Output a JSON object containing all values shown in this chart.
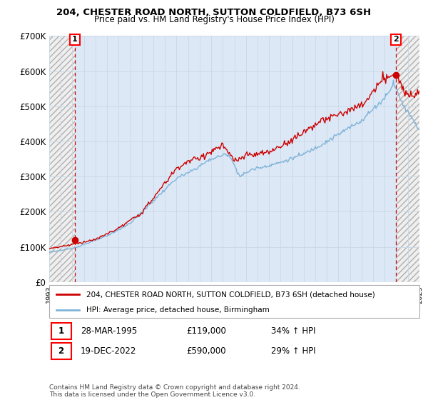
{
  "title1": "204, CHESTER ROAD NORTH, SUTTON COLDFIELD, B73 6SH",
  "title2": "Price paid vs. HM Land Registry's House Price Index (HPI)",
  "ylim": [
    0,
    700000
  ],
  "yticks": [
    0,
    100000,
    200000,
    300000,
    400000,
    500000,
    600000,
    700000
  ],
  "ytick_labels": [
    "£0",
    "£100K",
    "£200K",
    "£300K",
    "£400K",
    "£500K",
    "£600K",
    "£700K"
  ],
  "xlim_start": 1993,
  "xlim_end": 2025,
  "sale1_date": 1995.22,
  "sale1_price": 119000,
  "sale2_date": 2022.97,
  "sale2_price": 590000,
  "legend_line1": "204, CHESTER ROAD NORTH, SUTTON COLDFIELD, B73 6SH (detached house)",
  "legend_line2": "HPI: Average price, detached house, Birmingham",
  "ann1_num": "1",
  "ann1_date": "28-MAR-1995",
  "ann1_price": "£119,000",
  "ann1_hpi": "34% ↑ HPI",
  "ann2_num": "2",
  "ann2_date": "19-DEC-2022",
  "ann2_price": "£590,000",
  "ann2_hpi": "29% ↑ HPI",
  "footer": "Contains HM Land Registry data © Crown copyright and database right 2024.\nThis data is licensed under the Open Government Licence v3.0.",
  "sold_color": "#cc0000",
  "hpi_color": "#7fb3d9",
  "hatch_color": "#c8c8c8",
  "grid_color": "#c8d8e8",
  "bg_blue": "#dce8f5",
  "bg_white": "#f5f5f5"
}
